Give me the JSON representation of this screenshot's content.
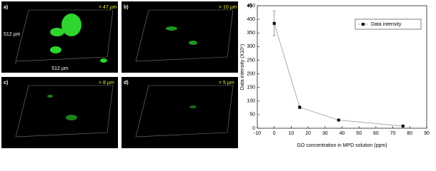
{
  "panels": [
    {
      "label": "a)",
      "depth": "> 47 µm",
      "width_label": "512 µm",
      "height_label": "512 µm"
    },
    {
      "label": "b)",
      "depth": "> 10 µm"
    },
    {
      "label": "c)",
      "depth": "> 8 µm"
    },
    {
      "label": "d)",
      "depth": "> 5 µm"
    }
  ],
  "chart_data": {
    "type": "line",
    "panel_label": "e)",
    "x_label": "GO concentration in MPD solution (ppm)",
    "y_label": "Data intensity (X10⁵)",
    "xlim": [
      -10,
      90
    ],
    "xticks": [
      -10,
      0,
      10,
      20,
      30,
      40,
      50,
      60,
      70,
      80,
      90
    ],
    "ylim": [
      0,
      450
    ],
    "yticks": [
      0,
      50,
      100,
      150,
      200,
      250,
      300,
      350,
      400,
      450
    ],
    "legend": "top-right",
    "series": [
      {
        "name": "Data intensity",
        "color": "#000000",
        "x": [
          0,
          15,
          38,
          76
        ],
        "values": [
          385,
          77,
          30,
          8
        ],
        "errors": [
          45,
          5,
          3,
          2
        ]
      }
    ]
  }
}
